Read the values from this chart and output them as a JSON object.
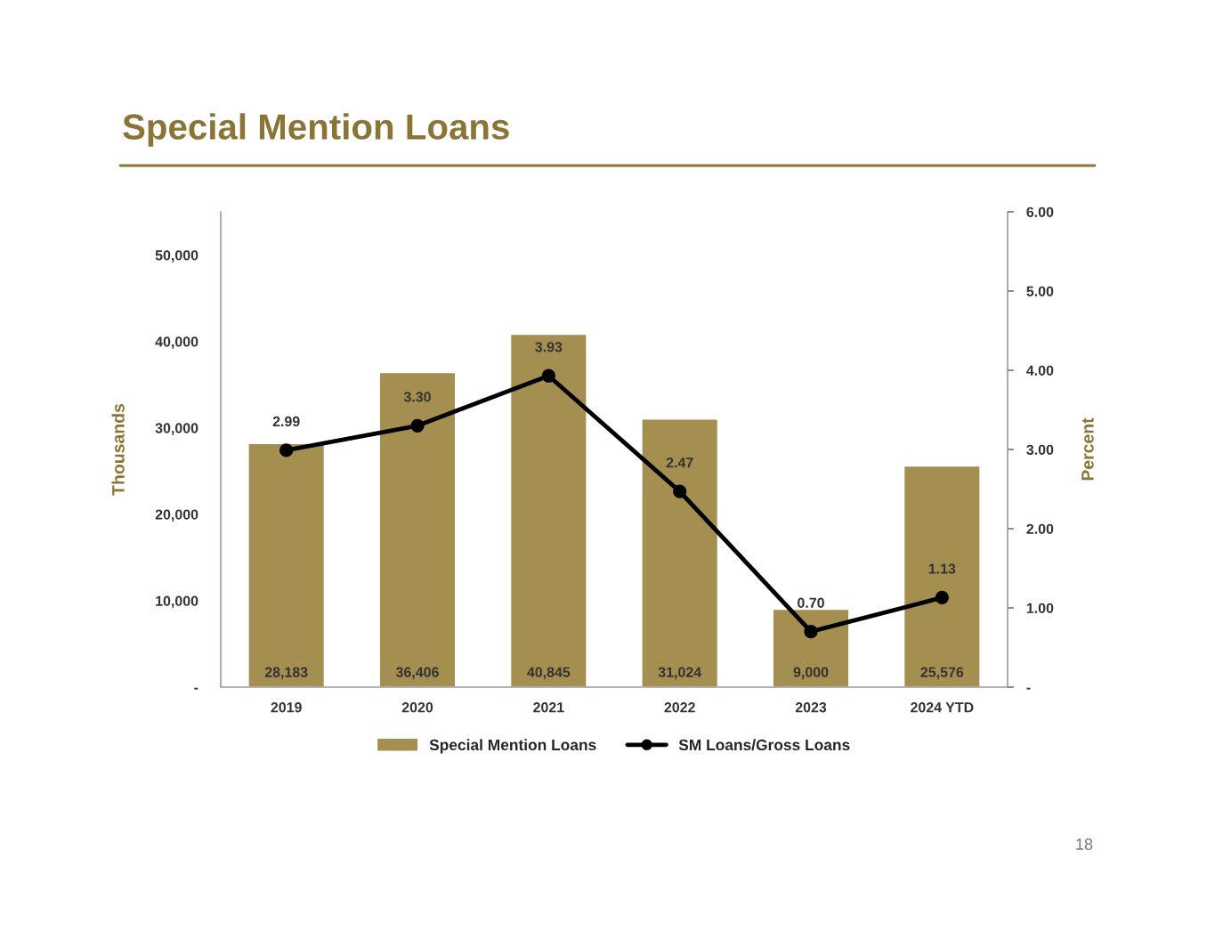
{
  "chart_data": {
    "type": "bar",
    "title": "Special Mention Loans",
    "ylabel": "Thousands",
    "y2label": "Percent",
    "categories": [
      "2019",
      "2020",
      "2021",
      "2022",
      "2023",
      "2024 YTD"
    ],
    "series": [
      {
        "name": "Special Mention Loans",
        "color": "#a58f50",
        "values": [
          28183,
          36406,
          40845,
          31024,
          9000,
          25576
        ],
        "value_labels": [
          "28,183",
          "36,406",
          "40,845",
          "31,024",
          "9,000",
          "25,576"
        ]
      },
      {
        "name": "SM Loans/Gross Loans",
        "type": "line",
        "axis": "y2",
        "color": "#000000",
        "values": [
          2.99,
          3.3,
          3.93,
          2.47,
          0.7,
          1.13
        ],
        "value_labels": [
          "2.99",
          "3.30",
          "3.93",
          "2.47",
          "0.70",
          "1.13"
        ]
      }
    ],
    "data_labels": true,
    "marker": "circle",
    "line_style": "solid",
    "legend": "bottom",
    "grid": false,
    "ylim": [
      0,
      55000
    ],
    "yticks": [
      {
        "value": 0,
        "label": "-"
      },
      {
        "value": 10000,
        "label": "10,000"
      },
      {
        "value": 20000,
        "label": "20,000"
      },
      {
        "value": 30000,
        "label": "30,000"
      },
      {
        "value": 40000,
        "label": "40,000"
      },
      {
        "value": 50000,
        "label": "50,000"
      }
    ],
    "y2lim": [
      0,
      6
    ],
    "y2ticks": [
      {
        "value": 0,
        "label": "-"
      },
      {
        "value": 1,
        "label": "1.00"
      },
      {
        "value": 2,
        "label": "2.00"
      },
      {
        "value": 3,
        "label": "3.00"
      },
      {
        "value": 4,
        "label": "4.00"
      },
      {
        "value": 5,
        "label": "5.00"
      },
      {
        "value": 6,
        "label": "6.00"
      }
    ],
    "annotations": [
      "18"
    ]
  }
}
